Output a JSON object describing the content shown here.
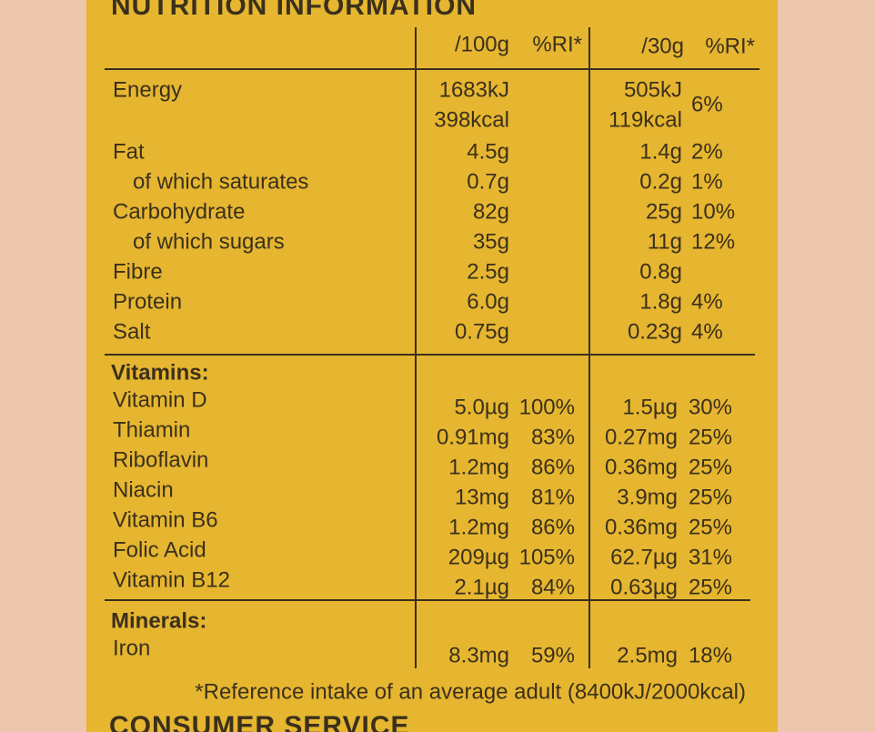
{
  "title": "NUTRITION INFORMATION",
  "columns": {
    "g100": "/100g",
    "ri100": "%RI*",
    "g30": "/30g",
    "ri30": "%RI*"
  },
  "sections": [
    {
      "rows": [
        {
          "label": "Energy",
          "g100": [
            "1683kJ",
            "398kcal"
          ],
          "g30": [
            "505kJ",
            "119kcal"
          ],
          "ri30": "6%"
        },
        {
          "label": "Fat",
          "g100": "4.5g",
          "g30": "1.4g",
          "ri30": "2%"
        },
        {
          "label": "of which saturates",
          "indent": true,
          "g100": "0.7g",
          "g30": "0.2g",
          "ri30": "1%"
        },
        {
          "label": "Carbohydrate",
          "g100": "82g",
          "g30": "25g",
          "ri30": "10%"
        },
        {
          "label": "of which sugars",
          "indent": true,
          "g100": "35g",
          "g30": "11g",
          "ri30": "12%"
        },
        {
          "label": "Fibre",
          "g100": "2.5g",
          "g30": "0.8g"
        },
        {
          "label": "Protein",
          "g100": "6.0g",
          "g30": "1.8g",
          "ri30": "4%"
        },
        {
          "label": "Salt",
          "g100": "0.75g",
          "g30": "0.23g",
          "ri30": "4%"
        }
      ]
    },
    {
      "heading": "Vitamins:",
      "rows": [
        {
          "label": "Vitamin D",
          "g100": "5.0µg",
          "ri100": "100%",
          "g30": "1.5µg",
          "ri30": "30%"
        },
        {
          "label": "Thiamin",
          "g100": "0.91mg",
          "ri100": "83%",
          "g30": "0.27mg",
          "ri30": "25%"
        },
        {
          "label": "Riboflavin",
          "g100": "1.2mg",
          "ri100": "86%",
          "g30": "0.36mg",
          "ri30": "25%"
        },
        {
          "label": "Niacin",
          "g100": "13mg",
          "ri100": "81%",
          "g30": "3.9mg",
          "ri30": "25%"
        },
        {
          "label": "Vitamin B6",
          "g100": "1.2mg",
          "ri100": "86%",
          "g30": "0.36mg",
          "ri30": "25%"
        },
        {
          "label": "Folic Acid",
          "g100": "209µg",
          "ri100": "105%",
          "g30": "62.7µg",
          "ri30": "31%"
        },
        {
          "label": "Vitamin B12",
          "g100": "2.1µg",
          "ri100": "84%",
          "g30": "0.63µg",
          "ri30": "25%"
        }
      ]
    },
    {
      "heading": "Minerals:",
      "rows": [
        {
          "label": "Iron",
          "g100": "8.3mg",
          "ri100": "59%",
          "g30": "2.5mg",
          "ri30": "18%"
        }
      ]
    }
  ],
  "footnote": "*Reference intake of an average adult (8400kJ/2000kcal)",
  "next_title": "CONSUMER SERVICE"
}
